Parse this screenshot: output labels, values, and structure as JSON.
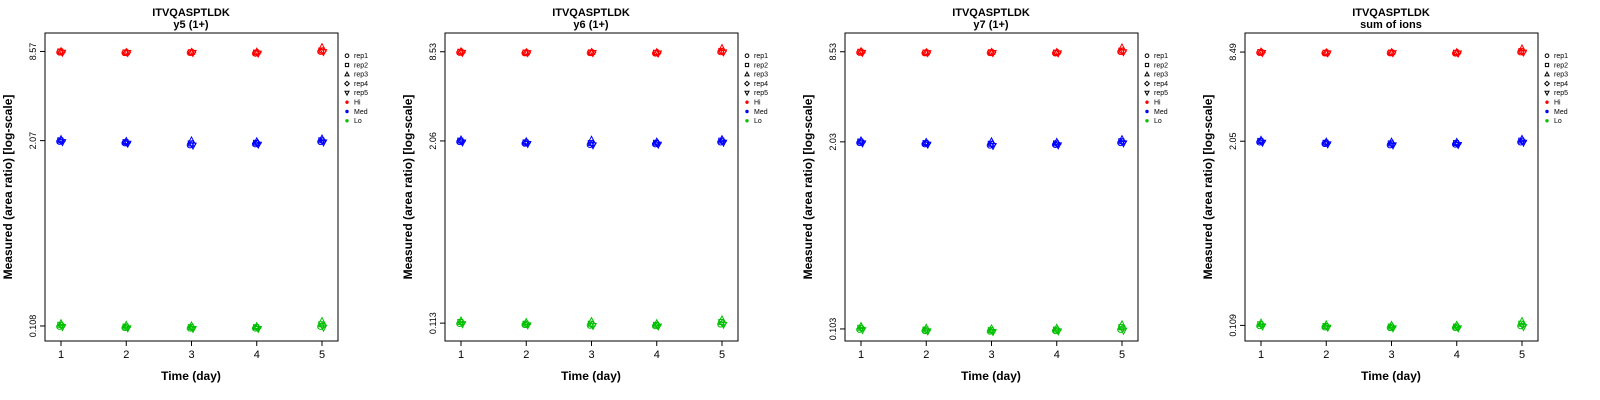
{
  "legend": {
    "reps": [
      {
        "label": "rep1",
        "marker": "circle"
      },
      {
        "label": "rep2",
        "marker": "square"
      },
      {
        "label": "rep3",
        "marker": "triangle-up"
      },
      {
        "label": "rep4",
        "marker": "diamond"
      },
      {
        "label": "rep5",
        "marker": "triangle-down"
      }
    ],
    "levels": [
      {
        "label": "Hi",
        "color": "#FF0000"
      },
      {
        "label": "Med",
        "color": "#0000FF"
      },
      {
        "label": "Lo",
        "color": "#00C000"
      }
    ]
  },
  "chart_data": [
    {
      "type": "scatter",
      "title": "ITVQASPTLDK",
      "subtitle": "y5 (1+)",
      "xlabel": "Time (day)",
      "ylabel": "Measured (area ratio) [log-scale]",
      "x": [
        1,
        2,
        3,
        4,
        5
      ],
      "x_tick_labels": [
        "1",
        "2",
        "3",
        "4",
        "5"
      ],
      "yscale": "log",
      "ylim": [
        0.085,
        11.5
      ],
      "grid": false,
      "legend_position": "right",
      "yticks": [
        {
          "value": 8.57,
          "label": "8.57"
        },
        {
          "value": 2.07,
          "label": "2.07"
        },
        {
          "value": 0.108,
          "label": "0.108"
        }
      ],
      "series": [
        {
          "name": "Hi",
          "color": "#FF0000",
          "values": [
            [
              8.45,
              8.57,
              8.62,
              8.5,
              8.4
            ],
            [
              8.38,
              8.44,
              8.5,
              8.42,
              8.36
            ],
            [
              8.4,
              8.46,
              8.52,
              8.44,
              8.38
            ],
            [
              8.3,
              8.42,
              8.55,
              8.4,
              8.28
            ],
            [
              8.55,
              8.7,
              9.2,
              8.62,
              8.48
            ]
          ]
        },
        {
          "name": "Med",
          "color": "#0000FF",
          "values": [
            [
              2.04,
              2.08,
              2.12,
              2.06,
              2.02
            ],
            [
              1.99,
              2.02,
              2.06,
              2.0,
              1.97
            ],
            [
              1.93,
              1.98,
              2.08,
              1.96,
              1.91
            ],
            [
              1.96,
              2.0,
              2.05,
              1.98,
              1.94
            ],
            [
              2.03,
              2.08,
              2.14,
              2.06,
              2.01
            ]
          ]
        },
        {
          "name": "Lo",
          "color": "#00C000",
          "values": [
            [
              0.107,
              0.11,
              0.113,
              0.109,
              0.106
            ],
            [
              0.105,
              0.107,
              0.11,
              0.106,
              0.104
            ],
            [
              0.104,
              0.106,
              0.109,
              0.105,
              0.103
            ],
            [
              0.104,
              0.106,
              0.108,
              0.105,
              0.103
            ],
            [
              0.107,
              0.111,
              0.117,
              0.109,
              0.105
            ]
          ]
        }
      ]
    },
    {
      "type": "scatter",
      "title": "ITVQASPTLDK",
      "subtitle": "y6 (1+)",
      "xlabel": "Time (day)",
      "ylabel": "Measured (area ratio) [log-scale]",
      "x": [
        1,
        2,
        3,
        4,
        5
      ],
      "x_tick_labels": [
        "1",
        "2",
        "3",
        "4",
        "5"
      ],
      "yscale": "log",
      "ylim": [
        0.085,
        11.5
      ],
      "grid": false,
      "legend_position": "right",
      "yticks": [
        {
          "value": 8.53,
          "label": "8.53"
        },
        {
          "value": 2.06,
          "label": "2.06"
        },
        {
          "value": 0.113,
          "label": "0.113"
        }
      ],
      "series": [
        {
          "name": "Hi",
          "color": "#FF0000",
          "values": [
            [
              8.42,
              8.53,
              8.6,
              8.48,
              8.38
            ],
            [
              8.36,
              8.42,
              8.48,
              8.4,
              8.34
            ],
            [
              8.38,
              8.44,
              8.5,
              8.42,
              8.36
            ],
            [
              8.32,
              8.4,
              8.48,
              8.38,
              8.3
            ],
            [
              8.5,
              8.64,
              9.05,
              8.56,
              8.44
            ]
          ]
        },
        {
          "name": "Med",
          "color": "#0000FF",
          "values": [
            [
              2.03,
              2.07,
              2.11,
              2.05,
              2.01
            ],
            [
              1.98,
              2.01,
              2.05,
              2.0,
              1.96
            ],
            [
              1.94,
              1.99,
              2.1,
              1.97,
              1.92
            ],
            [
              1.96,
              2.0,
              2.04,
              1.98,
              1.94
            ],
            [
              2.02,
              2.07,
              2.12,
              2.05,
              2.0
            ]
          ]
        },
        {
          "name": "Lo",
          "color": "#00C000",
          "values": [
            [
              0.112,
              0.115,
              0.118,
              0.114,
              0.111
            ],
            [
              0.11,
              0.112,
              0.115,
              0.111,
              0.109
            ],
            [
              0.109,
              0.112,
              0.117,
              0.11,
              0.108
            ],
            [
              0.108,
              0.11,
              0.113,
              0.109,
              0.107
            ],
            [
              0.111,
              0.115,
              0.12,
              0.113,
              0.11
            ]
          ]
        }
      ]
    },
    {
      "type": "scatter",
      "title": "ITVQASPTLDK",
      "subtitle": "y7 (1+)",
      "xlabel": "Time (day)",
      "ylabel": "Measured (area ratio) [log-scale]",
      "x": [
        1,
        2,
        3,
        4,
        5
      ],
      "x_tick_labels": [
        "1",
        "2",
        "3",
        "4",
        "5"
      ],
      "yscale": "log",
      "ylim": [
        0.085,
        11.5
      ],
      "grid": false,
      "legend_position": "right",
      "yticks": [
        {
          "value": 8.53,
          "label": "8.53"
        },
        {
          "value": 2.03,
          "label": "2.03"
        },
        {
          "value": 0.103,
          "label": "0.103"
        }
      ],
      "series": [
        {
          "name": "Hi",
          "color": "#FF0000",
          "values": [
            [
              8.42,
              8.53,
              8.62,
              8.48,
              8.38
            ],
            [
              8.36,
              8.42,
              8.48,
              8.4,
              8.34
            ],
            [
              8.38,
              8.46,
              8.52,
              8.42,
              8.36
            ],
            [
              8.34,
              8.42,
              8.5,
              8.4,
              8.32
            ],
            [
              8.52,
              8.68,
              9.15,
              8.6,
              8.46
            ]
          ]
        },
        {
          "name": "Med",
          "color": "#0000FF",
          "values": [
            [
              2.0,
              2.04,
              2.08,
              2.02,
              1.98
            ],
            [
              1.96,
              1.99,
              2.03,
              1.98,
              1.94
            ],
            [
              1.92,
              1.97,
              2.05,
              1.95,
              1.9
            ],
            [
              1.94,
              1.98,
              2.03,
              1.96,
              1.92
            ],
            [
              2.0,
              2.05,
              2.12,
              2.03,
              1.98
            ]
          ]
        },
        {
          "name": "Lo",
          "color": "#00C000",
          "values": [
            [
              0.102,
              0.105,
              0.108,
              0.104,
              0.101
            ],
            [
              0.1,
              0.102,
              0.105,
              0.101,
              0.099
            ],
            [
              0.099,
              0.101,
              0.104,
              0.1,
              0.098
            ],
            [
              0.1,
              0.102,
              0.105,
              0.101,
              0.099
            ],
            [
              0.102,
              0.106,
              0.111,
              0.104,
              0.1
            ]
          ]
        }
      ]
    },
    {
      "type": "scatter",
      "title": "ITVQASPTLDK",
      "subtitle": "sum of ions",
      "xlabel": "Time (day)",
      "ylabel": "Measured (area ratio) [log-scale]",
      "x": [
        1,
        2,
        3,
        4,
        5
      ],
      "x_tick_labels": [
        "1",
        "2",
        "3",
        "4",
        "5"
      ],
      "yscale": "log",
      "ylim": [
        0.085,
        11.5
      ],
      "grid": false,
      "legend_position": "right",
      "yticks": [
        {
          "value": 8.49,
          "label": "8.49"
        },
        {
          "value": 2.05,
          "label": "2.05"
        },
        {
          "value": 0.109,
          "label": "0.109"
        }
      ],
      "series": [
        {
          "name": "Hi",
          "color": "#FF0000",
          "values": [
            [
              8.4,
              8.49,
              8.56,
              8.45,
              8.36
            ],
            [
              8.34,
              8.4,
              8.46,
              8.38,
              8.32
            ],
            [
              8.36,
              8.42,
              8.48,
              8.4,
              8.34
            ],
            [
              8.32,
              8.4,
              8.48,
              8.38,
              8.3
            ],
            [
              8.48,
              8.62,
              9.0,
              8.54,
              8.42
            ]
          ]
        },
        {
          "name": "Med",
          "color": "#0000FF",
          "values": [
            [
              2.02,
              2.06,
              2.1,
              2.04,
              2.0
            ],
            [
              1.97,
              2.0,
              2.04,
              1.99,
              1.95
            ],
            [
              1.93,
              1.98,
              2.04,
              1.96,
              1.92
            ],
            [
              1.95,
              1.99,
              2.03,
              1.97,
              1.93
            ],
            [
              2.02,
              2.07,
              2.13,
              2.05,
              2.0
            ]
          ]
        },
        {
          "name": "Lo",
          "color": "#00C000",
          "values": [
            [
              0.108,
              0.111,
              0.114,
              0.11,
              0.107
            ],
            [
              0.106,
              0.108,
              0.111,
              0.107,
              0.105
            ],
            [
              0.105,
              0.107,
              0.11,
              0.106,
              0.104
            ],
            [
              0.105,
              0.107,
              0.11,
              0.106,
              0.104
            ],
            [
              0.108,
              0.112,
              0.117,
              0.11,
              0.106
            ]
          ]
        }
      ]
    }
  ]
}
